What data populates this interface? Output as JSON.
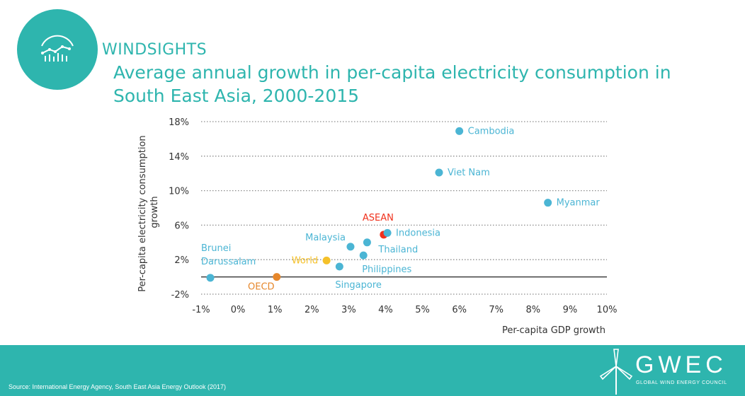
{
  "header": {
    "brand": "WINDSIGHTS",
    "title_line1": "Average annual growth in per-capita electricity consumption in",
    "title_line2": "South East Asia, 2000-2015",
    "badge_icon": "analytics-icon"
  },
  "footer": {
    "source": "Source: International Energy Agency, South East Asia Energy Outlook (2017)",
    "logo_word": "GWEC",
    "logo_sub": "GLOBAL WIND ENERGY COUNCIL"
  },
  "colors": {
    "teal": "#2eb5ae",
    "country": "#4bb5d4",
    "asean": "#f0311c",
    "world": "#f5c12a",
    "oecd": "#e6872b",
    "axis_text": "#333333"
  },
  "chart_data": {
    "type": "scatter",
    "xlabel": "Per-capita GDP growth",
    "ylabel": "Per-capita electricity consumption growth",
    "xlim": [
      -1,
      10
    ],
    "ylim": [
      -2,
      18
    ],
    "x_ticks": [
      "-1%",
      "0%",
      "1%",
      "2%",
      "3%",
      "4%",
      "5%",
      "6%",
      "7%",
      "8%",
      "9%",
      "10%"
    ],
    "y_ticks": [
      "18%",
      "14%",
      "10%",
      "6%",
      "2%",
      "-2%"
    ],
    "y_tick_values": [
      18,
      14,
      10,
      6,
      2,
      -2
    ],
    "grid": "horizontal dotted",
    "points": [
      {
        "label": "Cambodia",
        "x": 6.0,
        "y": 16.9,
        "group": "country"
      },
      {
        "label": "Viet Nam",
        "x": 5.45,
        "y": 12.1,
        "group": "country"
      },
      {
        "label": "Myanmar",
        "x": 8.4,
        "y": 8.6,
        "group": "country"
      },
      {
        "label": "ASEAN",
        "x": 3.95,
        "y": 4.9,
        "group": "asean"
      },
      {
        "label": "Indonesia",
        "x": 4.05,
        "y": 5.1,
        "group": "country"
      },
      {
        "label": "Malaysia",
        "x": 3.05,
        "y": 3.5,
        "group": "country"
      },
      {
        "label": "Thailand",
        "x": 3.5,
        "y": 4.0,
        "group": "country"
      },
      {
        "label": "Philippines",
        "x": 3.4,
        "y": 2.5,
        "group": "country"
      },
      {
        "label": "World",
        "x": 2.4,
        "y": 1.9,
        "group": "world"
      },
      {
        "label": "Singapore",
        "x": 2.75,
        "y": 1.2,
        "group": "country"
      },
      {
        "label": "Brunei Darussalam",
        "x": -0.75,
        "y": -0.1,
        "group": "country"
      },
      {
        "label": "OECD",
        "x": 1.05,
        "y": 0.0,
        "group": "oecd"
      }
    ]
  }
}
